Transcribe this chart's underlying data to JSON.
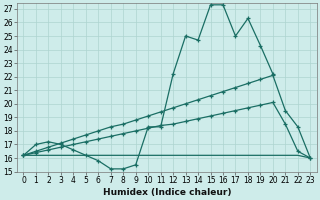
{
  "background_color": "#ceecea",
  "grid_color": "#aed4d0",
  "line_color": "#1a6e64",
  "xlabel": "Humidex (Indice chaleur)",
  "xlim": [
    -0.5,
    23.5
  ],
  "ylim": [
    15,
    27.4
  ],
  "xticks": [
    0,
    1,
    2,
    3,
    4,
    5,
    6,
    7,
    8,
    9,
    10,
    11,
    12,
    13,
    14,
    15,
    16,
    17,
    18,
    19,
    20,
    21,
    22,
    23
  ],
  "yticks": [
    15,
    16,
    17,
    18,
    19,
    20,
    21,
    22,
    23,
    24,
    25,
    26,
    27
  ],
  "line1_x": [
    0,
    1,
    2,
    3,
    4,
    5,
    6,
    7,
    8,
    9,
    10,
    11,
    12,
    13,
    14,
    15,
    16,
    17,
    18,
    19,
    20,
    21,
    22,
    23
  ],
  "line1_y": [
    16.2,
    17.0,
    17.2,
    17.0,
    16.6,
    16.2,
    15.8,
    15.2,
    15.2,
    15.5,
    18.3,
    18.3,
    22.2,
    25.0,
    24.7,
    27.3,
    27.3,
    25.0,
    26.3,
    24.3,
    22.2,
    null,
    null,
    null
  ],
  "line1_markers": [
    0,
    1,
    2,
    3,
    4,
    5,
    6,
    7,
    8,
    9,
    10,
    11,
    12,
    13,
    14,
    15,
    16,
    17,
    18,
    19,
    20
  ],
  "line2_x": [
    0,
    1,
    2,
    3,
    4,
    5,
    6,
    7,
    8,
    9,
    10,
    11,
    12,
    13,
    14,
    15,
    16,
    17,
    18,
    19,
    20,
    21,
    22,
    23
  ],
  "line2_y": [
    16.2,
    16.5,
    16.8,
    17.1,
    17.4,
    17.7,
    18.0,
    18.3,
    18.5,
    18.8,
    19.1,
    19.4,
    19.7,
    20.0,
    20.3,
    20.6,
    20.9,
    21.2,
    21.5,
    21.8,
    22.1,
    19.5,
    18.3,
    16.0
  ],
  "line3_x": [
    0,
    1,
    2,
    3,
    4,
    5,
    6,
    7,
    8,
    9,
    10,
    11,
    12,
    13,
    14,
    15,
    16,
    17,
    18,
    19,
    20,
    21,
    22,
    23
  ],
  "line3_y": [
    16.2,
    16.4,
    16.6,
    16.8,
    17.0,
    17.2,
    17.4,
    17.6,
    17.8,
    18.0,
    18.2,
    18.4,
    18.5,
    18.7,
    18.9,
    19.1,
    19.3,
    19.5,
    19.7,
    19.9,
    20.1,
    18.5,
    16.5,
    16.0
  ],
  "line4_x": [
    0,
    1,
    2,
    3,
    4,
    5,
    6,
    7,
    8,
    9,
    10,
    11,
    12,
    13,
    14,
    15,
    16,
    17,
    18,
    19,
    20,
    21,
    22,
    23
  ],
  "line4_y": [
    16.2,
    16.2,
    16.2,
    16.2,
    16.2,
    16.2,
    16.2,
    16.2,
    16.2,
    16.2,
    16.2,
    16.2,
    16.2,
    16.2,
    16.2,
    16.2,
    16.2,
    16.2,
    16.2,
    16.2,
    16.2,
    16.2,
    16.2,
    16.0
  ],
  "title_fontsize": 7,
  "tick_fontsize": 5.5,
  "label_fontsize": 6.5
}
